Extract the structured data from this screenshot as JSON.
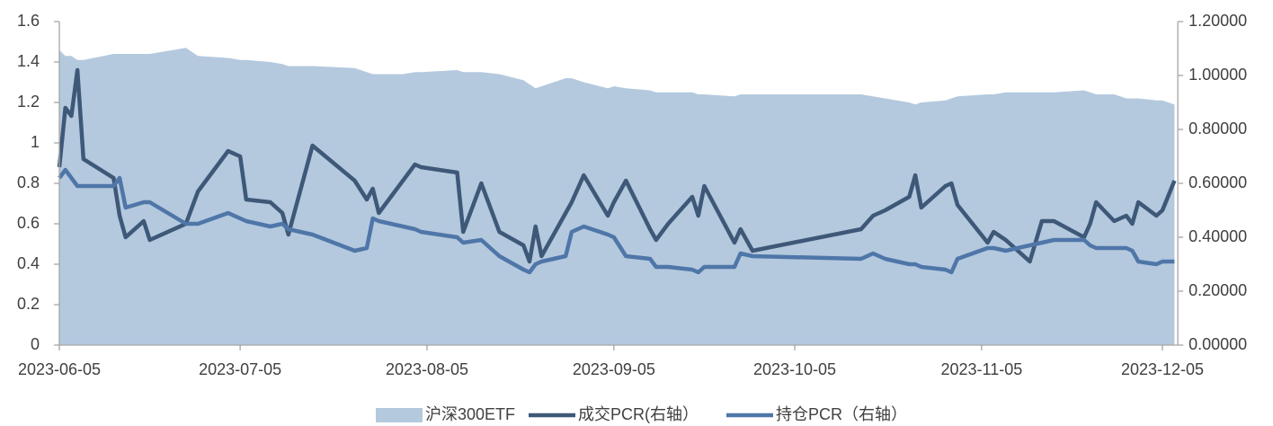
{
  "chart_data": {
    "type": "line",
    "x": [
      "2023-06-05",
      "2023-06-06",
      "2023-06-07",
      "2023-06-08",
      "2023-06-09",
      "2023-06-14",
      "2023-06-15",
      "2023-06-16",
      "2023-06-19",
      "2023-06-20",
      "2023-06-26",
      "2023-06-28",
      "2023-07-03",
      "2023-07-05",
      "2023-07-06",
      "2023-07-10",
      "2023-07-12",
      "2023-07-13",
      "2023-07-17",
      "2023-07-24",
      "2023-07-26",
      "2023-07-27",
      "2023-07-28",
      "2023-08-01",
      "2023-08-03",
      "2023-08-04",
      "2023-08-10",
      "2023-08-11",
      "2023-08-14",
      "2023-08-17",
      "2023-08-21",
      "2023-08-22",
      "2023-08-23",
      "2023-08-24",
      "2023-08-28",
      "2023-08-29",
      "2023-08-31",
      "2023-09-04",
      "2023-09-05",
      "2023-09-07",
      "2023-09-11",
      "2023-09-12",
      "2023-09-14",
      "2023-09-18",
      "2023-09-19",
      "2023-09-20",
      "2023-09-25",
      "2023-09-26",
      "2023-09-28",
      "2023-10-16",
      "2023-10-18",
      "2023-10-20",
      "2023-10-24",
      "2023-10-25",
      "2023-10-26",
      "2023-10-30",
      "2023-10-31",
      "2023-11-01",
      "2023-11-06",
      "2023-11-07",
      "2023-11-09",
      "2023-11-13",
      "2023-11-15",
      "2023-11-17",
      "2023-11-22",
      "2023-11-23",
      "2023-11-24",
      "2023-11-27",
      "2023-11-29",
      "2023-11-30",
      "2023-12-01",
      "2023-12-04",
      "2023-12-05",
      "2023-12-07"
    ],
    "xlim": [
      "2023-06-05",
      "2023-12-08"
    ],
    "xticks": [
      "2023-06-05",
      "2023-07-05",
      "2023-08-05",
      "2023-09-05",
      "2023-10-05",
      "2023-11-05",
      "2023-12-05"
    ],
    "ylim": [
      0,
      1.6
    ],
    "yticks": [
      0,
      0.2,
      0.4,
      0.6,
      0.8,
      1,
      1.2,
      1.4,
      1.6
    ],
    "y2lim": [
      0,
      1.2
    ],
    "y2ticks": [
      {
        "value": 0,
        "label": "0.00000"
      },
      {
        "value": 0.2,
        "label": "0.20000"
      },
      {
        "value": 0.4,
        "label": "0.40000"
      },
      {
        "value": 0.6,
        "label": "0.60000"
      },
      {
        "value": 0.8,
        "label": "0.80000"
      },
      {
        "value": 1,
        "label": "1.00000"
      },
      {
        "value": 1.2,
        "label": "1.20000"
      }
    ],
    "legend": "bottom",
    "series": [
      {
        "name": "沪深300ETF",
        "kind": "area",
        "color": "#b4c9de",
        "values": [
          1.46,
          1.43,
          1.43,
          1.41,
          1.41,
          1.44,
          1.44,
          1.44,
          1.44,
          1.44,
          1.47,
          1.43,
          1.42,
          1.41,
          1.41,
          1.4,
          1.39,
          1.38,
          1.38,
          1.37,
          1.35,
          1.34,
          1.34,
          1.34,
          1.35,
          1.35,
          1.36,
          1.35,
          1.35,
          1.34,
          1.31,
          1.29,
          1.27,
          1.28,
          1.32,
          1.32,
          1.3,
          1.27,
          1.28,
          1.27,
          1.26,
          1.25,
          1.25,
          1.25,
          1.24,
          1.24,
          1.23,
          1.24,
          1.24,
          1.24,
          1.23,
          1.22,
          1.2,
          1.19,
          1.2,
          1.21,
          1.22,
          1.23,
          1.24,
          1.24,
          1.25,
          1.25,
          1.25,
          1.25,
          1.26,
          1.25,
          1.24,
          1.24,
          1.22,
          1.22,
          1.22,
          1.21,
          1.21,
          1.19
        ]
      },
      {
        "name": "成交PCR(右轴）",
        "kind": "line",
        "axis": "y2",
        "color": "#3e5878",
        "values": [
          0.66,
          0.88,
          0.85,
          1.02,
          0.69,
          0.62,
          0.48,
          0.4,
          0.46,
          0.39,
          0.45,
          0.57,
          0.72,
          0.7,
          0.54,
          0.53,
          0.49,
          0.41,
          0.74,
          0.61,
          0.54,
          0.58,
          0.49,
          0.61,
          0.67,
          0.66,
          0.64,
          0.42,
          0.6,
          0.42,
          0.37,
          0.31,
          0.44,
          0.33,
          0.49,
          0.53,
          0.63,
          0.48,
          0.53,
          0.61,
          0.43,
          0.39,
          0.45,
          0.55,
          0.48,
          0.59,
          0.38,
          0.43,
          0.35,
          0.43,
          0.48,
          0.5,
          0.55,
          0.63,
          0.51,
          0.59,
          0.6,
          0.52,
          0.38,
          0.42,
          0.39,
          0.31,
          0.46,
          0.46,
          0.4,
          0.45,
          0.53,
          0.46,
          0.48,
          0.45,
          0.53,
          0.48,
          0.5,
          0.61
        ]
      },
      {
        "name": "持仓PCR（右轴）",
        "kind": "line",
        "axis": "y2",
        "color": "#4f76a8",
        "values": [
          0.62,
          0.65,
          0.62,
          0.59,
          0.59,
          0.59,
          0.62,
          0.51,
          0.53,
          0.53,
          0.45,
          0.45,
          0.49,
          0.47,
          0.46,
          0.44,
          0.45,
          0.43,
          0.41,
          0.35,
          0.36,
          0.47,
          0.46,
          0.44,
          0.43,
          0.42,
          0.4,
          0.38,
          0.39,
          0.33,
          0.28,
          0.27,
          0.3,
          0.31,
          0.33,
          0.42,
          0.44,
          0.41,
          0.4,
          0.33,
          0.32,
          0.29,
          0.29,
          0.28,
          0.27,
          0.29,
          0.29,
          0.34,
          0.33,
          0.32,
          0.34,
          0.32,
          0.3,
          0.3,
          0.29,
          0.28,
          0.27,
          0.32,
          0.36,
          0.36,
          0.35,
          0.37,
          0.38,
          0.39,
          0.39,
          0.37,
          0.36,
          0.36,
          0.36,
          0.35,
          0.31,
          0.3,
          0.31,
          0.31
        ]
      }
    ]
  }
}
